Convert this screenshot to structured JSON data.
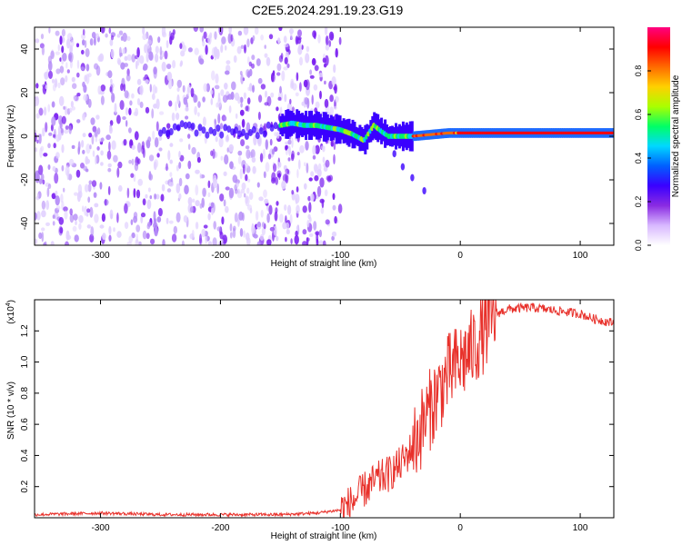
{
  "figure_title": "C2E5.2024.291.19.23.G19",
  "chart_data": [
    {
      "type": "heatmap",
      "xlabel": "Height of straight line (km)",
      "ylabel": "Frequency (Hz)",
      "xlim": [
        -355,
        128
      ],
      "ylim": [
        -50,
        50
      ],
      "xticks": [
        -300,
        -200,
        -100,
        0,
        100
      ],
      "yticks": [
        -40,
        -20,
        0,
        20,
        40
      ],
      "colorbar": {
        "label": "Normalized spectral amplitude",
        "range": [
          0,
          1
        ],
        "ticks": [
          0.0,
          0.2,
          0.4,
          0.6,
          0.8
        ],
        "tick_labels": [
          "0.0",
          "0.2",
          "0.4",
          "0.6",
          "0.8"
        ],
        "colors": [
          "#ffffff",
          "#d8b8ff",
          "#8a2be2",
          "#3a00ff",
          "#0060ff",
          "#00d8ff",
          "#00ff66",
          "#aaff00",
          "#ffd000",
          "#ff6a00",
          "#ff0000",
          "#ff0080"
        ]
      },
      "features": {
        "noise_region_x": [
          -355,
          -110
        ],
        "signal_track": [
          [
            -150,
            5
          ],
          [
            -140,
            6
          ],
          [
            -130,
            5
          ],
          [
            -120,
            5
          ],
          [
            -110,
            4
          ],
          [
            -100,
            3
          ],
          [
            -90,
            1
          ],
          [
            -80,
            -2
          ],
          [
            -72,
            5
          ],
          [
            -65,
            2
          ],
          [
            -60,
            0
          ],
          [
            -50,
            0
          ],
          [
            -40,
            0
          ],
          [
            -30,
            0.5
          ],
          [
            -20,
            1
          ],
          [
            -10,
            1.5
          ],
          [
            0,
            1.5
          ],
          [
            20,
            1.5
          ],
          [
            40,
            1.5
          ],
          [
            60,
            1.5
          ],
          [
            80,
            1.5
          ],
          [
            100,
            1.5
          ],
          [
            128,
            1.5
          ]
        ],
        "branch_track": [
          [
            -62,
            -2
          ],
          [
            -55,
            -8
          ],
          [
            -48,
            -14
          ],
          [
            -40,
            -19
          ],
          [
            -30,
            -25
          ]
        ]
      }
    },
    {
      "type": "line",
      "xlabel": "Height of straight line (km)",
      "ylabel": "SNR (10 * v/v)",
      "multiplier_label": "(x10",
      "multiplier_exp": "4",
      "multiplier_close": ")",
      "xlim": [
        -355,
        128
      ],
      "ylim": [
        0,
        1.4
      ],
      "xticks": [
        -300,
        -200,
        -100,
        0,
        100
      ],
      "yticks": [
        0.2,
        0.4,
        0.6,
        0.8,
        1.0,
        1.2
      ],
      "ytick_labels": [
        "0.2",
        "0.4",
        "0.6",
        "0.8",
        "1.0",
        "1.2"
      ],
      "series": [
        {
          "color": "#e8302a",
          "x": [
            -355,
            -300,
            -250,
            -200,
            -150,
            -120,
            -100,
            -90,
            -80,
            -70,
            -60,
            -50,
            -40,
            -30,
            -20,
            -10,
            0,
            10,
            20,
            30,
            40,
            60,
            80,
            100,
            110,
            128
          ],
          "values": [
            0.02,
            0.03,
            0.02,
            0.02,
            0.02,
            0.03,
            0.05,
            0.1,
            0.18,
            0.24,
            0.28,
            0.34,
            0.45,
            0.62,
            0.78,
            0.92,
            1.0,
            1.08,
            1.2,
            1.31,
            1.34,
            1.35,
            1.33,
            1.31,
            1.28,
            1.25
          ]
        }
      ]
    }
  ],
  "colors": {
    "line": "#e8302a",
    "axis": "#000000",
    "background": "#ffffff"
  }
}
